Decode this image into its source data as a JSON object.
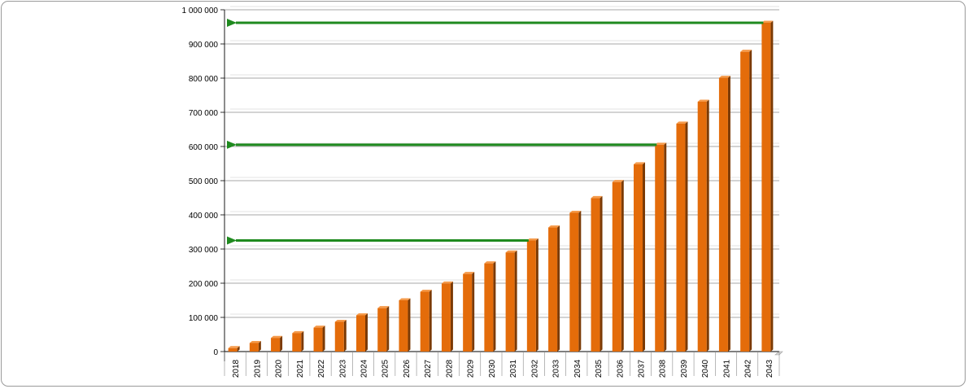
{
  "chart_data": {
    "type": "bar",
    "title": "",
    "xlabel": "",
    "ylabel": "",
    "ylim": [
      0,
      1000000
    ],
    "yticks": [
      0,
      100000,
      200000,
      300000,
      400000,
      500000,
      600000,
      700000,
      800000,
      900000,
      1000000
    ],
    "ytick_labels": [
      "0",
      "100 000",
      "200 000",
      "300 000",
      "400 000",
      "500 000",
      "600 000",
      "700 000",
      "800 000",
      "900 000",
      "1 000 000"
    ],
    "grid": true,
    "legend": "none",
    "categories": [
      "2018",
      "2019",
      "2020",
      "2021",
      "2022",
      "2023",
      "2024",
      "2025",
      "2026",
      "2027",
      "2028",
      "2029",
      "2030",
      "2031",
      "2032",
      "2033",
      "2034",
      "2035",
      "2036",
      "2037",
      "2038",
      "2039",
      "2040",
      "2041",
      "2042",
      "2043"
    ],
    "values": [
      10000,
      25000,
      40000,
      54000,
      70000,
      87000,
      106000,
      127000,
      150000,
      175000,
      199000,
      227000,
      258000,
      290000,
      325000,
      363000,
      406000,
      449000,
      496000,
      548000,
      605000,
      667000,
      731000,
      801000,
      877000,
      962000
    ],
    "bar_color": "#e46c0a",
    "bar_side_color": "#7b3a05",
    "bar_top_color": "#f59a4a",
    "annotations": [
      {
        "type": "arrow",
        "from_category": "2032",
        "y": 325000,
        "to": "y-axis",
        "color": "#1f8a1f"
      },
      {
        "type": "arrow",
        "from_category": "2038",
        "y": 605000,
        "to": "y-axis",
        "color": "#1f8a1f"
      },
      {
        "type": "arrow",
        "from_category": "2043",
        "y": 962000,
        "to": "y-axis",
        "color": "#1f8a1f"
      }
    ]
  }
}
